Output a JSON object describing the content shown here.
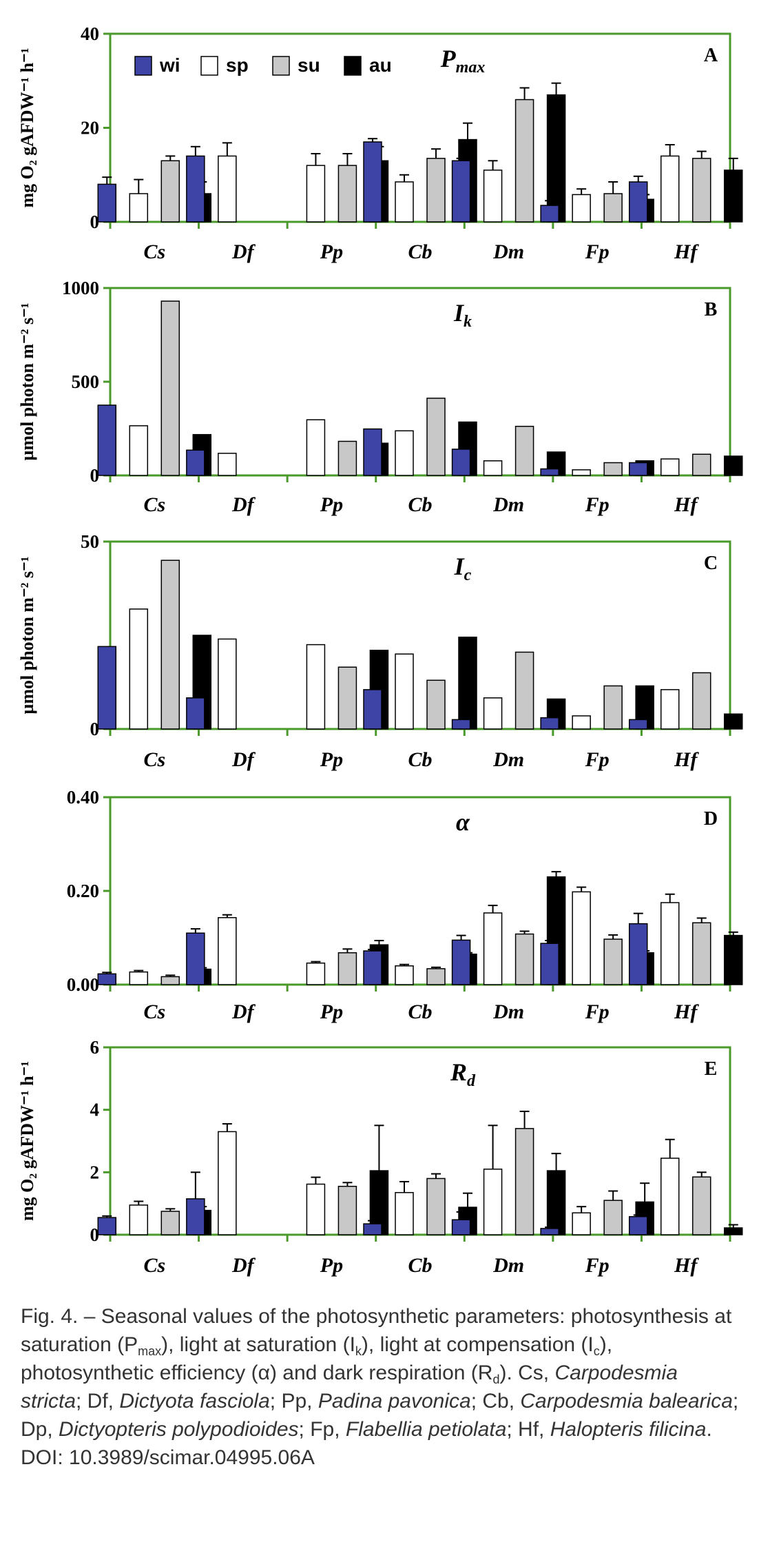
{
  "colors": {
    "wi": "#3e44a6",
    "sp": "#ffffff",
    "su": "#c8c8c8",
    "au": "#000000",
    "axis": "#4a9a2a"
  },
  "chart_data": [
    {
      "type": "bar",
      "panel": "A",
      "title_main": "P",
      "title_sub": "max",
      "ylabel": "mg O₂ gAFDW⁻¹ h⁻¹",
      "ylim": [
        0,
        40
      ],
      "yticks": [
        "0",
        "20",
        "40"
      ],
      "ytick_values": [
        0,
        20,
        40
      ],
      "categories": [
        "Cs",
        "Df",
        "Pp",
        "Cb",
        "Dm",
        "Fp",
        "Hf"
      ],
      "legend": [
        "wi",
        "sp",
        "su",
        "au"
      ],
      "series": [
        {
          "name": "wi",
          "values": [
            8,
            14,
            null,
            17,
            13,
            3.5,
            8.5
          ],
          "errors": [
            1.5,
            2,
            null,
            0.7,
            0.5,
            1,
            1.2
          ]
        },
        {
          "name": "sp",
          "values": [
            6,
            14,
            12,
            8.5,
            11,
            5.8,
            14
          ],
          "errors": [
            3,
            2.8,
            2.5,
            1.5,
            2,
            1.2,
            2.4
          ]
        },
        {
          "name": "su",
          "values": [
            13,
            null,
            12,
            13.5,
            26,
            6,
            13.5
          ],
          "errors": [
            1,
            null,
            2.5,
            2,
            2.5,
            2.5,
            1.5
          ]
        },
        {
          "name": "au",
          "values": [
            6,
            null,
            13,
            17.5,
            27,
            4.8,
            11
          ],
          "errors": [
            2.5,
            null,
            3,
            3.5,
            2.5,
            1,
            2.5
          ]
        }
      ]
    },
    {
      "type": "bar",
      "panel": "B",
      "title_main": "I",
      "title_sub": "k",
      "ylabel": "µmol photon m⁻² s⁻¹",
      "ylim": [
        0,
        1000
      ],
      "yticks": [
        "0",
        "500",
        "1000"
      ],
      "ytick_values": [
        0,
        500,
        1000
      ],
      "categories": [
        "Cs",
        "Df",
        "Pp",
        "Cb",
        "Dm",
        "Fp",
        "Hf"
      ],
      "series": [
        {
          "name": "wi",
          "values": [
            375,
            135,
            null,
            248,
            140,
            35,
            68
          ]
        },
        {
          "name": "sp",
          "values": [
            265,
            118,
            297,
            238,
            78,
            30,
            88
          ]
        },
        {
          "name": "su",
          "values": [
            930,
            null,
            182,
            412,
            262,
            68,
            113
          ]
        },
        {
          "name": "au",
          "values": [
            218,
            null,
            172,
            285,
            125,
            78,
            103
          ]
        }
      ]
    },
    {
      "type": "bar",
      "panel": "C",
      "title_main": "I",
      "title_sub": "c",
      "ylabel": "µmol photon m⁻² s⁻¹",
      "ylim": [
        0,
        50
      ],
      "yticks": [
        "0",
        "50"
      ],
      "ytick_values": [
        0,
        50
      ],
      "categories": [
        "Cs",
        "Df",
        "Pp",
        "Cb",
        "Dm",
        "Fp",
        "Hf"
      ],
      "series": [
        {
          "name": "wi",
          "values": [
            22,
            8.3,
            null,
            10.5,
            2.5,
            3,
            2.5
          ]
        },
        {
          "name": "sp",
          "values": [
            32,
            24,
            22.5,
            20,
            8.3,
            3.5,
            10.5
          ]
        },
        {
          "name": "su",
          "values": [
            45,
            null,
            16.5,
            13,
            20.5,
            11.5,
            15
          ]
        },
        {
          "name": "au",
          "values": [
            25,
            null,
            21,
            24.5,
            8,
            11.5,
            4
          ]
        }
      ]
    },
    {
      "type": "bar",
      "panel": "D",
      "title_main": "α",
      "title_sub": "",
      "ylabel": "",
      "ylim": [
        0,
        0.4
      ],
      "yticks": [
        "0.00",
        "0.20",
        "0.40"
      ],
      "ytick_values": [
        0,
        0.2,
        0.4
      ],
      "categories": [
        "Cs",
        "Df",
        "Pp",
        "Cb",
        "Dm",
        "Fp",
        "Hf"
      ],
      "series": [
        {
          "name": "wi",
          "values": [
            0.023,
            0.11,
            null,
            0.072,
            0.095,
            0.088,
            0.13
          ],
          "errors": [
            0.003,
            0.009,
            null,
            0.003,
            0.01,
            0.006,
            0.022
          ]
        },
        {
          "name": "sp",
          "values": [
            0.027,
            0.143,
            0.046,
            0.04,
            0.153,
            0.198,
            0.175
          ],
          "errors": [
            0.003,
            0.006,
            0.003,
            0.003,
            0.016,
            0.01,
            0.018
          ]
        },
        {
          "name": "su",
          "values": [
            0.017,
            null,
            0.068,
            0.034,
            0.108,
            0.097,
            0.132
          ],
          "errors": [
            0.003,
            null,
            0.008,
            0.003,
            0.006,
            0.009,
            0.01
          ]
        },
        {
          "name": "au",
          "values": [
            0.033,
            null,
            0.085,
            0.065,
            0.23,
            0.068,
            0.105
          ],
          "errors": [
            0.003,
            null,
            0.009,
            0.003,
            0.011,
            0.004,
            0.007
          ]
        }
      ]
    },
    {
      "type": "bar",
      "panel": "E",
      "title_main": "R",
      "title_sub": "d",
      "ylabel": "mg O₂ gAFDW⁻¹ h⁻¹",
      "ylim": [
        0,
        6
      ],
      "yticks": [
        "0",
        "2",
        "4",
        "6"
      ],
      "ytick_values": [
        0,
        2,
        4,
        6
      ],
      "categories": [
        "Cs",
        "Df",
        "Pp",
        "Cb",
        "Dm",
        "Fp",
        "Hf"
      ],
      "series": [
        {
          "name": "wi",
          "values": [
            0.55,
            1.15,
            null,
            0.35,
            0.48,
            0.2,
            0.58
          ],
          "errors": [
            0.05,
            0.85,
            null,
            0.1,
            0.25,
            0.04,
            0.05
          ]
        },
        {
          "name": "sp",
          "values": [
            0.95,
            3.3,
            1.62,
            1.35,
            2.1,
            0.7,
            2.45
          ],
          "errors": [
            0.12,
            0.25,
            0.22,
            0.35,
            1.4,
            0.2,
            0.6
          ]
        },
        {
          "name": "su",
          "values": [
            0.75,
            null,
            1.55,
            1.8,
            3.4,
            1.1,
            1.85
          ],
          "errors": [
            0.08,
            null,
            0.12,
            0.15,
            0.55,
            0.3,
            0.15
          ]
        },
        {
          "name": "au",
          "values": [
            0.78,
            null,
            2.05,
            0.88,
            2.05,
            1.05,
            0.22
          ],
          "errors": [
            0.12,
            null,
            1.45,
            0.45,
            0.55,
            0.6,
            0.1
          ]
        }
      ]
    }
  ],
  "caption": {
    "fig": "Fig. 4. – Seasonal values of the photosynthetic parameters: photosynthesis at saturation (P",
    "pmax_sub": "max",
    "t2": "), light at saturation (I",
    "ik_sub": "k",
    "t3": "), light at compensation (I",
    "ic_sub": "c",
    "t4": "), photosynthetic efficiency (α) and dark respiration (R",
    "rd_sub": "d",
    "t5": "). Cs, ",
    "cs_name": "Carpodesmia stricta",
    "t6": "; Df, ",
    "df_name": "Dictyota fasciola",
    "t7": "; Pp, ",
    "pp_name": "Padina pavonica",
    "t8": "; Cb, ",
    "cb_name": "Carpodesmia balearica",
    "t9": "; Dp, ",
    "dp_name": "Dictyopteris polypodioides",
    "t10": "; Fp, ",
    "fp_name": "Flabellia petiolata",
    "t11": "; Hf, ",
    "hf_name": "Halopteris filicina",
    "t12": ". DOI: 10.3989/scimar.04995.06A"
  }
}
